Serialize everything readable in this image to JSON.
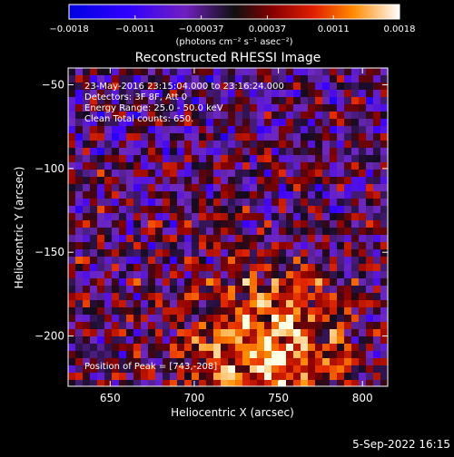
{
  "colorbar": {
    "ticks": [
      "−0.0018",
      "−0.0011",
      "−0.00037",
      "0.00037",
      "0.0011",
      "0.0018"
    ],
    "units_label": "(photons cm⁻² s⁻¹ asec⁻²)",
    "range": [
      -0.0018,
      0.0018
    ]
  },
  "chart_data": {
    "type": "heatmap",
    "title": "Reconstructed RHESSI Image",
    "xlabel": "Heliocentric X (arcsec)",
    "ylabel": "Heliocentric Y (arcsec)",
    "xlim": [
      625,
      815
    ],
    "ylim": [
      -230,
      -40
    ],
    "x_ticks": [
      650,
      700,
      750,
      800
    ],
    "y_ticks": [
      -50,
      -100,
      -150,
      -200
    ],
    "x_tick_labels": [
      "650",
      "700",
      "750",
      "800"
    ],
    "y_tick_labels": [
      "−50",
      "−100",
      "−150",
      "−200"
    ],
    "annotations": [
      "23-May-2016 23:15:04.000 to 23:16:24.000",
      "Detectors: 3F 8F, Att 0",
      "Energy Range: 25.0 - 50.0 keV",
      "Clean     Total counts: 650.",
      "Position of Peak = [743,-208]"
    ],
    "peak": [
      743,
      -208
    ]
  },
  "footer": {
    "date": "5-Sep-2022 16:15"
  }
}
